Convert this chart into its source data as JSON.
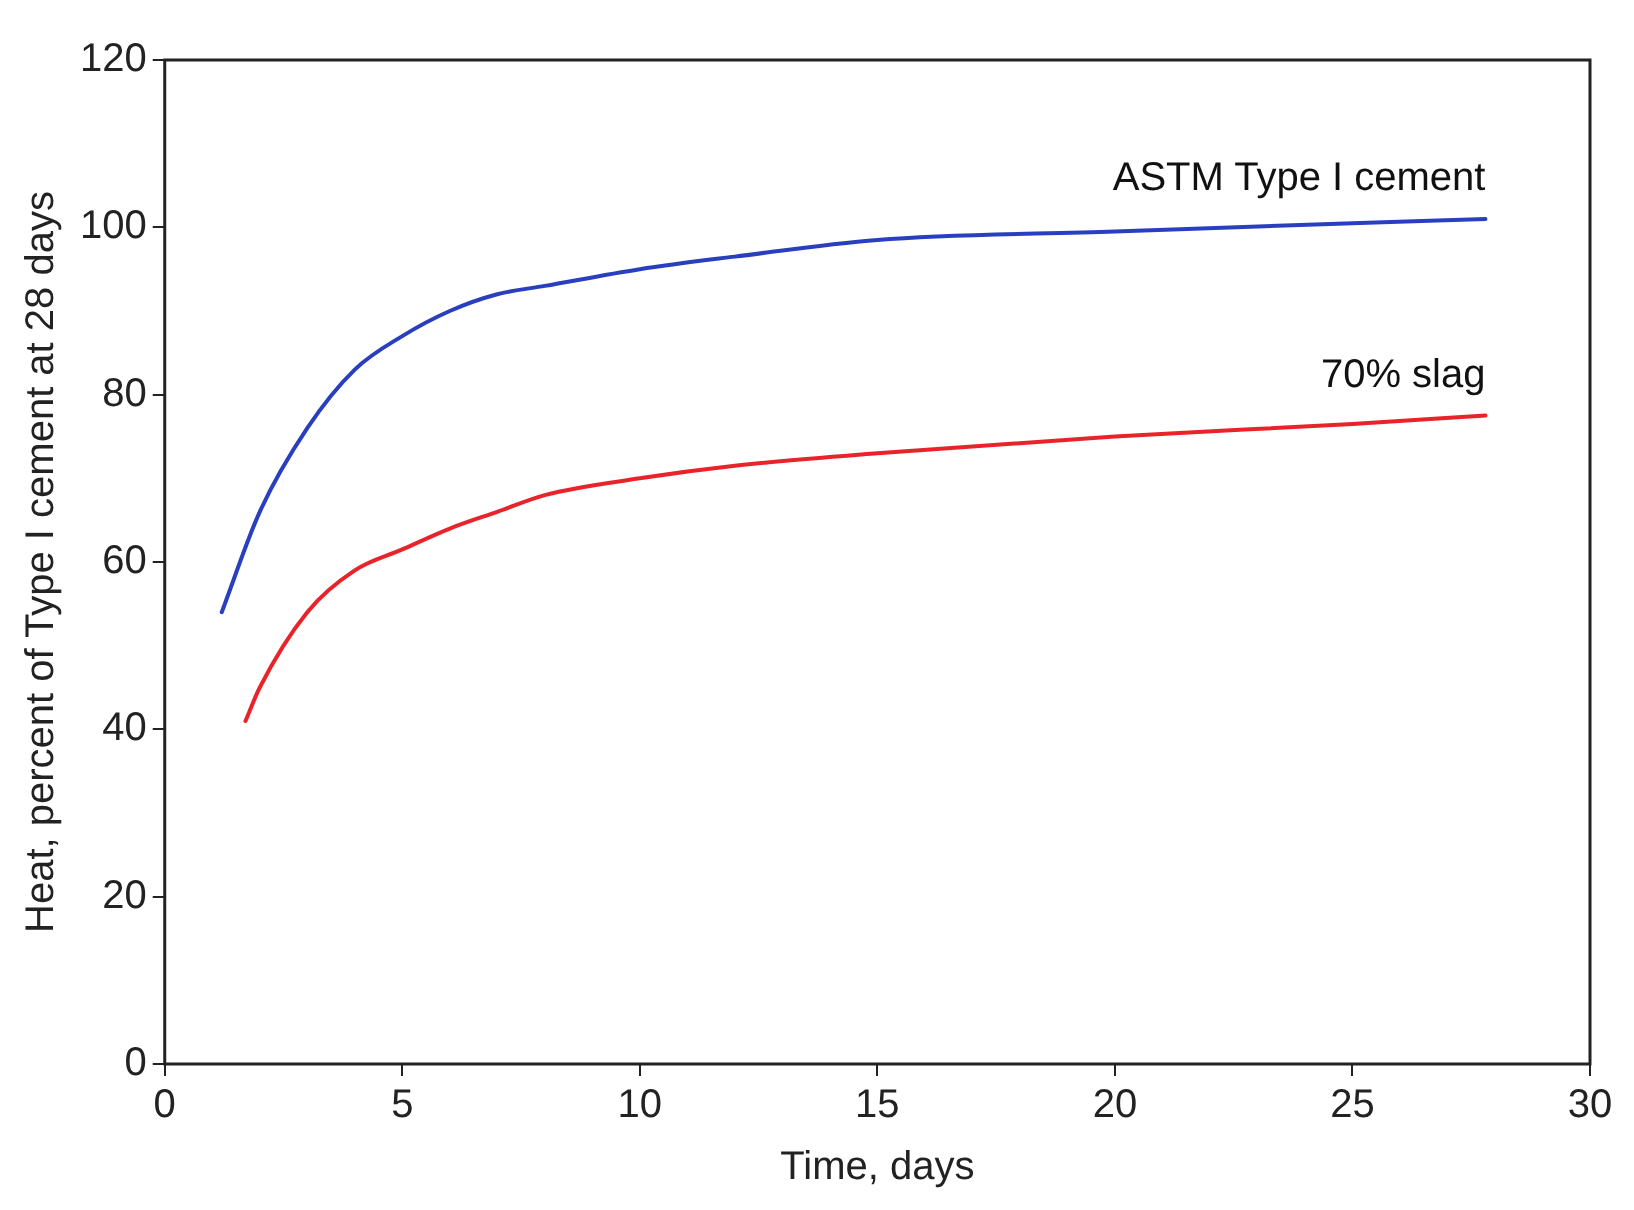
{
  "chart_data": {
    "type": "line",
    "xlabel": "Time, days",
    "ylabel": "Heat, percent of Type I cement at 28 days",
    "xlim": [
      0,
      30
    ],
    "xticks": [
      0,
      5,
      10,
      15,
      20,
      25,
      30
    ],
    "ylim": [
      0,
      120
    ],
    "yticks": [
      0,
      20,
      40,
      60,
      80,
      100,
      120
    ],
    "grid": false,
    "legend": false,
    "marker": "none",
    "line_style": "solid",
    "series": [
      {
        "name": "ASTM Type I cement",
        "color": "#2a3fbf",
        "x": [
          1.2,
          2,
          3,
          4,
          5,
          6,
          7,
          8,
          10,
          12,
          15,
          20,
          25,
          27.8
        ],
        "values": [
          54,
          66,
          76,
          83,
          87,
          90,
          92,
          93,
          95,
          96.5,
          98.5,
          99.5,
          100.5,
          101
        ]
      },
      {
        "name": "70% slag",
        "color": "#e8232a",
        "x": [
          1.7,
          2,
          3,
          4,
          5,
          6,
          7,
          8,
          10,
          12,
          15,
          20,
          25,
          27.8
        ],
        "values": [
          41,
          45,
          54,
          59,
          61.5,
          64,
          66,
          68,
          70,
          71.5,
          73,
          75,
          76.5,
          77.5
        ]
      }
    ]
  }
}
